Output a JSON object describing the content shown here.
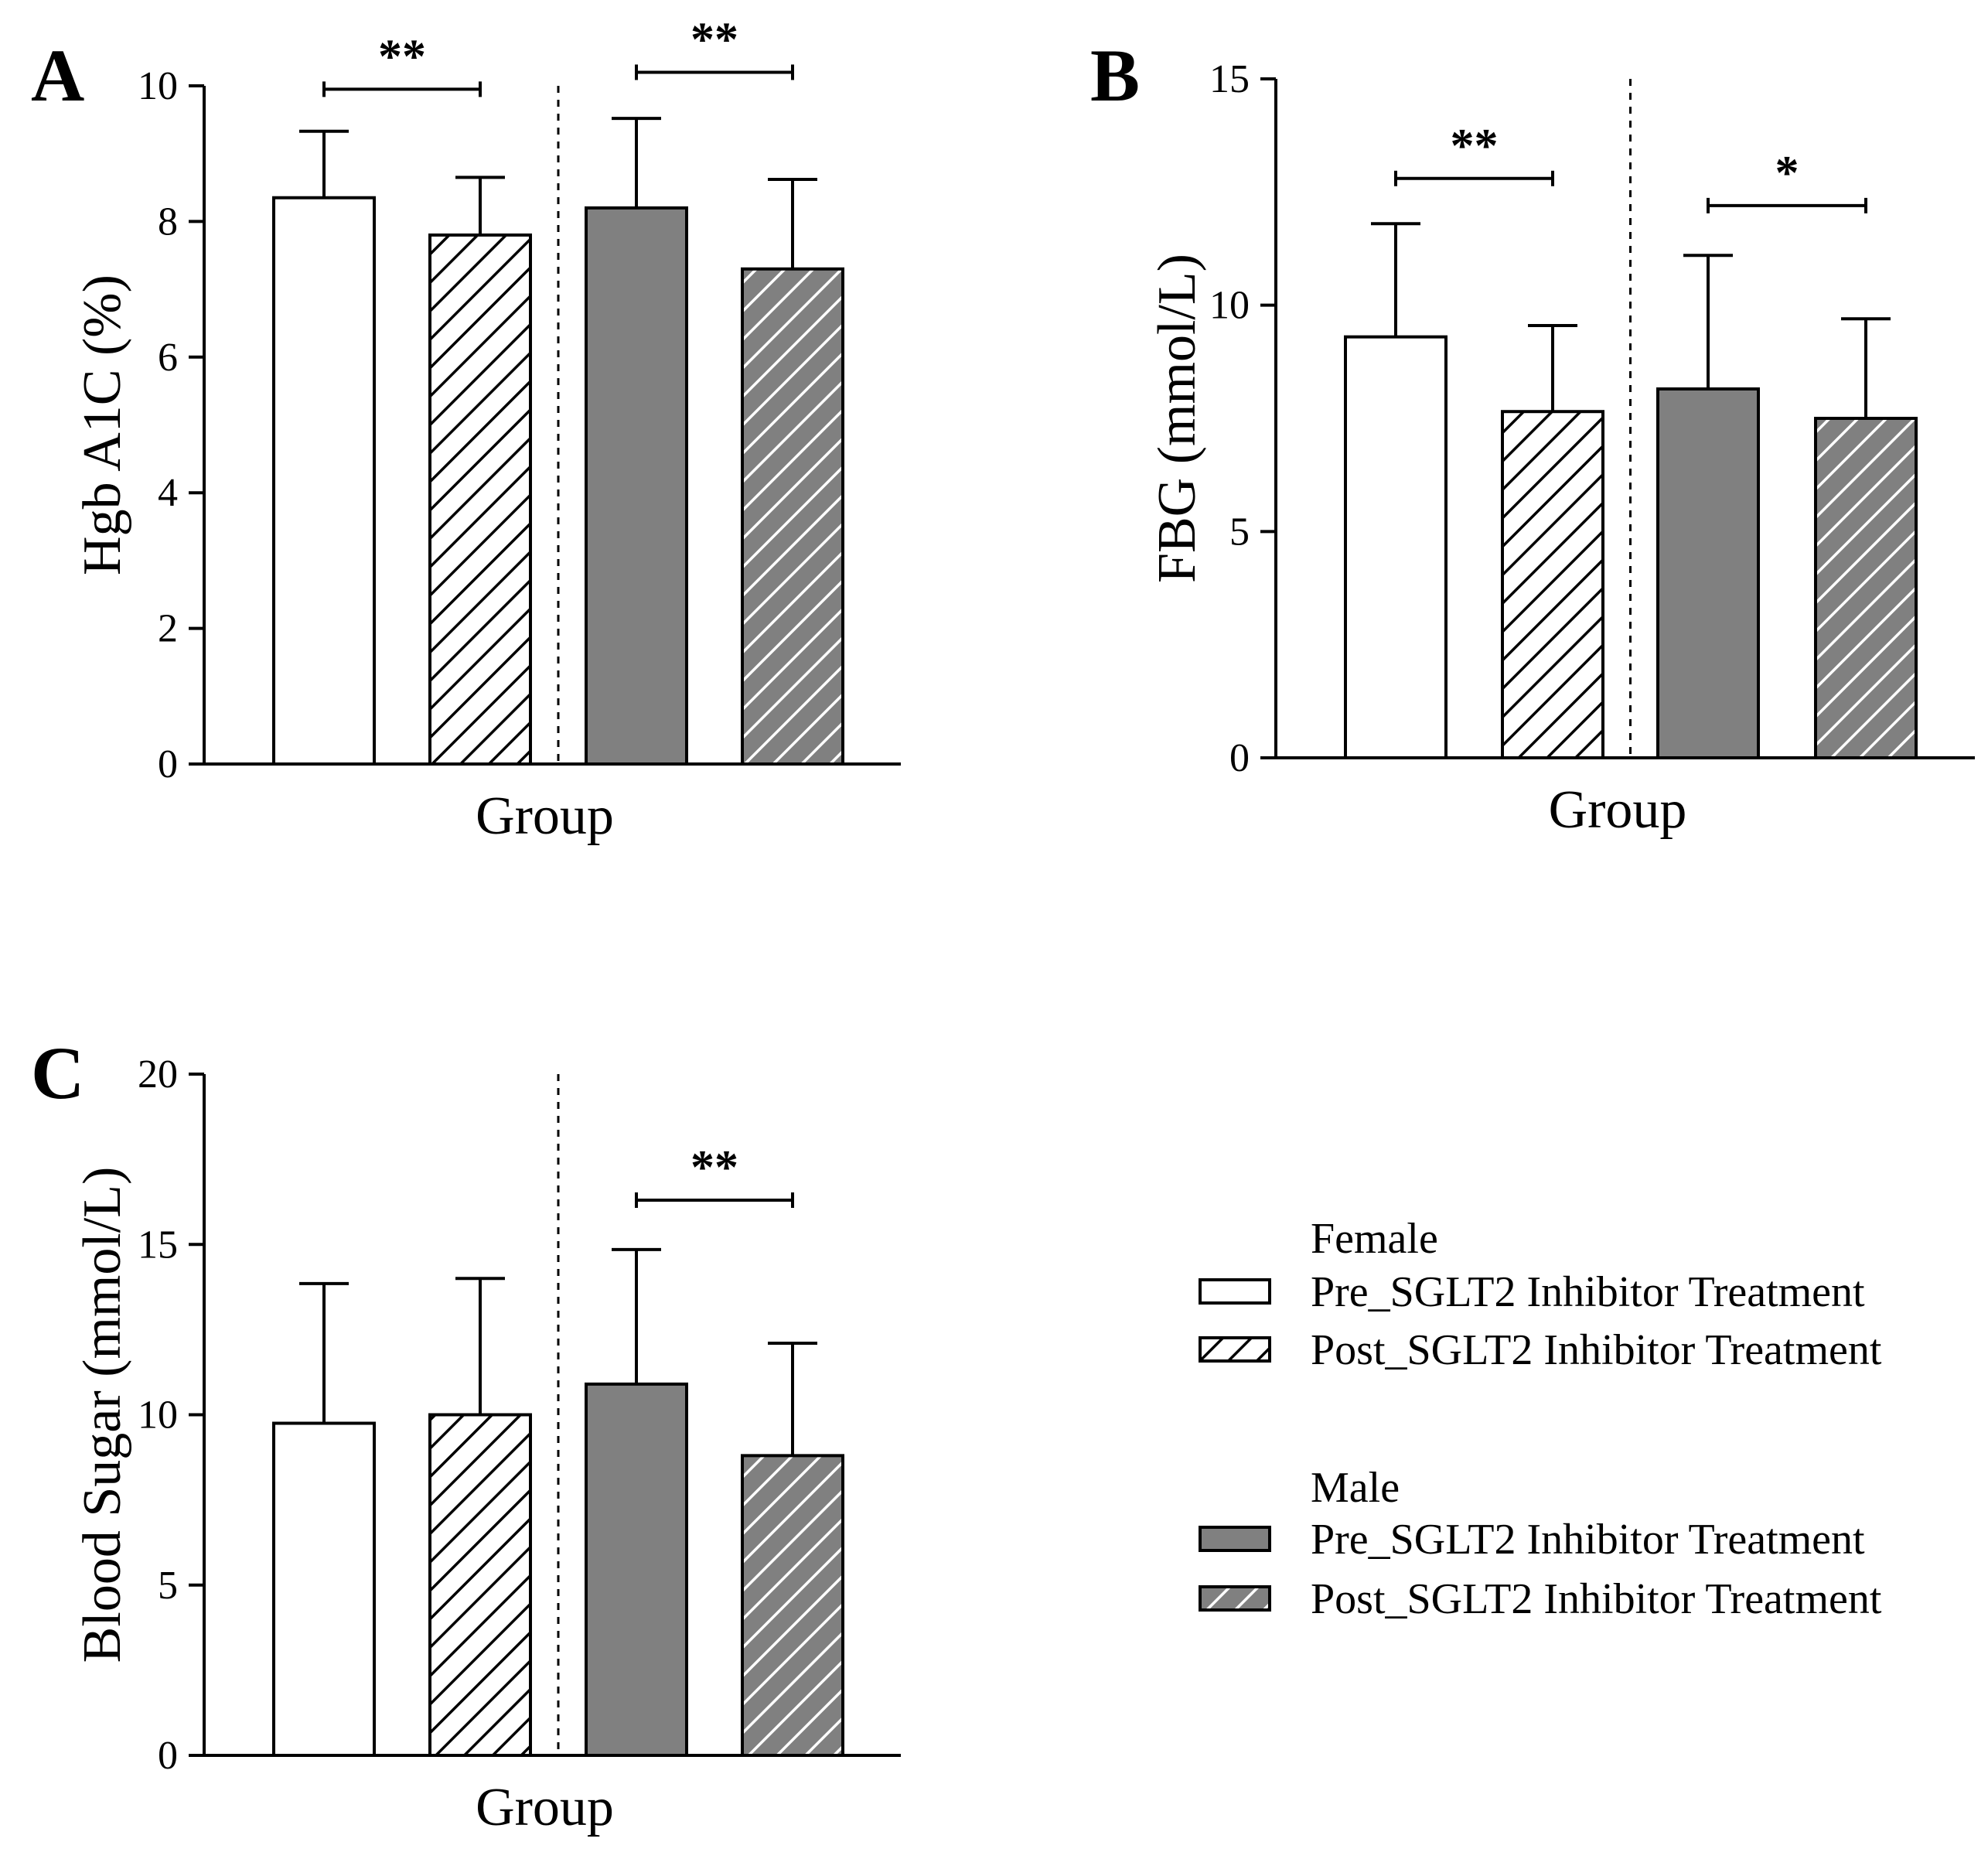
{
  "chart_data": [
    {
      "type": "bar",
      "panel": "A",
      "title": "",
      "xlabel": "Group",
      "ylabel": "Hgb A1C (%)",
      "ylim": [
        0,
        10
      ],
      "yticks": [
        0,
        2,
        4,
        6,
        8,
        10
      ],
      "categories": [
        "Female Pre",
        "Female Post",
        "Male Pre",
        "Male Post"
      ],
      "values": [
        8.35,
        7.8,
        8.2,
        7.3
      ],
      "errors": [
        0.98,
        0.85,
        1.32,
        1.32
      ],
      "significance": [
        {
          "from": 0,
          "to": 1,
          "label": "**",
          "y": 9.95
        },
        {
          "from": 2,
          "to": 3,
          "label": "**",
          "y": 10.2
        }
      ]
    },
    {
      "type": "bar",
      "panel": "B",
      "title": "",
      "xlabel": "Group",
      "ylabel": "FBG (mmol/L)",
      "ylim": [
        0,
        15
      ],
      "yticks": [
        0,
        5,
        10,
        15
      ],
      "categories": [
        "Female Pre",
        "Female Post",
        "Male Pre",
        "Male Post"
      ],
      "values": [
        9.3,
        7.65,
        8.15,
        7.5
      ],
      "errors": [
        2.5,
        1.9,
        2.95,
        2.2
      ],
      "significance": [
        {
          "from": 0,
          "to": 1,
          "label": "**",
          "y": 12.8
        },
        {
          "from": 2,
          "to": 3,
          "label": "*",
          "y": 12.2
        }
      ]
    },
    {
      "type": "bar",
      "panel": "C",
      "title": "",
      "xlabel": "Group",
      "ylabel": "Blood Sugar (mmol/L)",
      "ylim": [
        0,
        20
      ],
      "yticks": [
        0,
        5,
        10,
        15,
        20
      ],
      "categories": [
        "Female Pre",
        "Female Post",
        "Male Pre",
        "Male Post"
      ],
      "values": [
        9.75,
        10.0,
        10.9,
        8.8
      ],
      "errors": [
        4.1,
        4.0,
        3.95,
        3.3
      ],
      "significance": [
        {
          "from": 2,
          "to": 3,
          "label": "**",
          "y": 16.3
        }
      ]
    }
  ],
  "series_styles": [
    {
      "group": "Female",
      "label": "Pre_SGLT2 Inhibitor Treatment",
      "fill": "#ffffff",
      "hatch": false
    },
    {
      "group": "Female",
      "label": "Post_SGLT2 Inhibitor Treatment",
      "fill": "#ffffff",
      "hatch": true
    },
    {
      "group": "Male",
      "label": "Pre_SGLT2 Inhibitor Treatment",
      "fill": "#808080",
      "hatch": false
    },
    {
      "group": "Male",
      "label": "Post_SGLT2 Inhibitor Treatment",
      "fill": "#808080",
      "hatch": true
    }
  ],
  "legend": {
    "groups": [
      {
        "heading": "Female",
        "items": [
          "Pre_SGLT2 Inhibitor Treatment",
          "Post_SGLT2 Inhibitor Treatment"
        ]
      },
      {
        "heading": "Male",
        "items": [
          "Pre_SGLT2 Inhibitor Treatment",
          "Post_SGLT2 Inhibitor Treatment"
        ]
      }
    ]
  },
  "colors": {
    "male_fill": "#808080",
    "female_fill": "#ffffff",
    "stroke": "#000000"
  }
}
